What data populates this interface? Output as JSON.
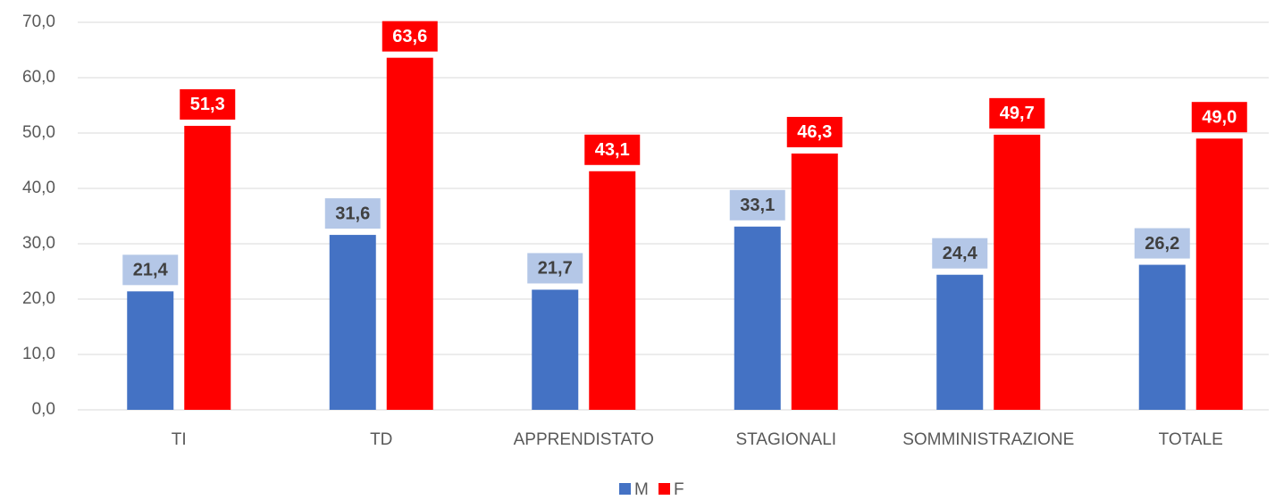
{
  "chart_data": {
    "type": "bar",
    "categories": [
      "TI",
      "TD",
      "APPRENDISTATO",
      "STAGIONALI",
      "SOMMINISTRAZIONE",
      "TOTALE"
    ],
    "series": [
      {
        "name": "M",
        "color": "#4472c4",
        "label_bg": "#b4c7e7",
        "label_color": "#404040",
        "values": [
          21.4,
          31.6,
          21.7,
          33.1,
          24.4,
          26.2
        ],
        "value_labels": [
          "21,4",
          "31,6",
          "21,7",
          "33,1",
          "24,4",
          "26,2"
        ]
      },
      {
        "name": "F",
        "color": "#ff0000",
        "label_bg": "#ff0000",
        "label_color": "#ffffff",
        "values": [
          51.3,
          63.6,
          43.1,
          46.3,
          49.7,
          49.0
        ],
        "value_labels": [
          "51,3",
          "63,6",
          "43,1",
          "46,3",
          "49,7",
          "49,0"
        ]
      }
    ],
    "ylim": [
      0,
      70
    ],
    "yticks": [
      {
        "value": 0,
        "label": "0,0"
      },
      {
        "value": 10,
        "label": "10,0"
      },
      {
        "value": 20,
        "label": "20,0"
      },
      {
        "value": 30,
        "label": "30,0"
      },
      {
        "value": 40,
        "label": "40,0"
      },
      {
        "value": 50,
        "label": "50,0"
      },
      {
        "value": 60,
        "label": "60,0"
      },
      {
        "value": 70,
        "label": "70,0"
      }
    ],
    "grid": true,
    "legend": "bottom"
  }
}
